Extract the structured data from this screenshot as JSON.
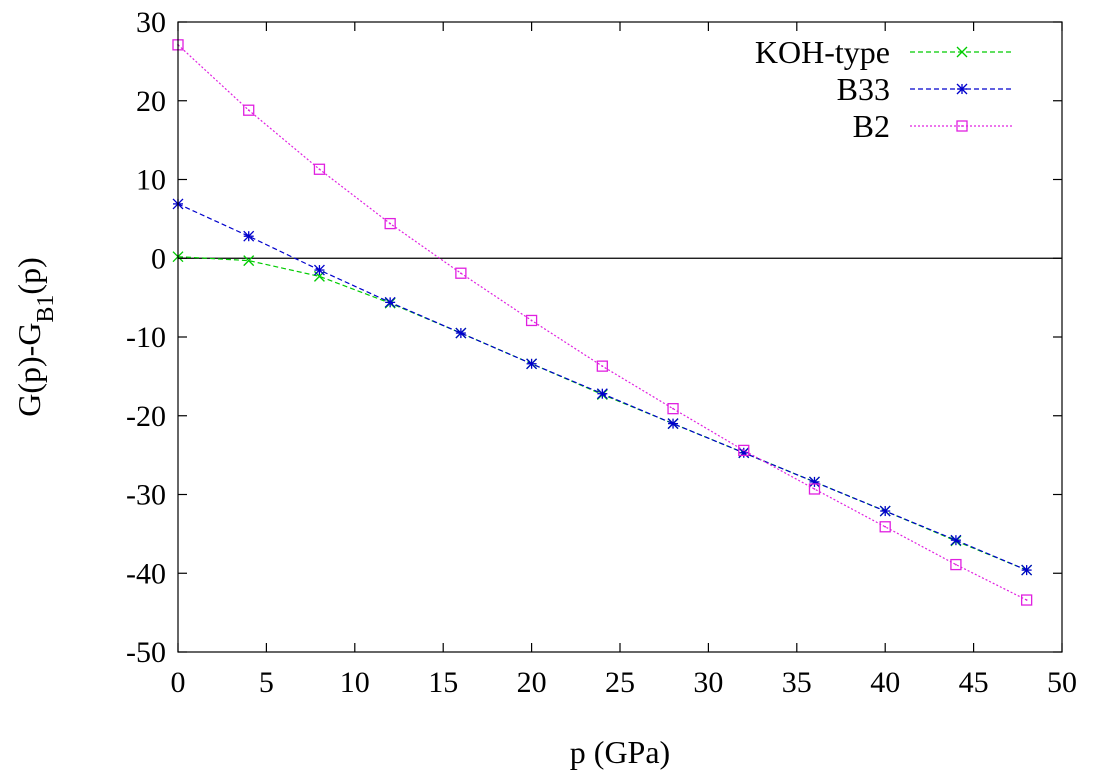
{
  "chart_data": {
    "type": "line",
    "title": "",
    "xlabel": "p (GPa)",
    "ylabel": {
      "main": "G(p)-G",
      "subscript": "B1",
      "suffix": "(p)"
    },
    "xlim": [
      0,
      50
    ],
    "ylim": [
      -50,
      30
    ],
    "xticks": [
      0,
      5,
      10,
      15,
      20,
      25,
      30,
      35,
      40,
      45,
      50
    ],
    "yticks": [
      -50,
      -40,
      -30,
      -20,
      -10,
      0,
      10,
      20,
      30
    ],
    "grid": false,
    "legend_position": "top-right",
    "zero_line": true,
    "series": [
      {
        "name": "KOH-type",
        "color": "#00cc00",
        "marker": "x",
        "dash": "dashed",
        "x": [
          0,
          4,
          8,
          12,
          16,
          20,
          24,
          28,
          32,
          36,
          40,
          44,
          48
        ],
        "y": [
          0.2,
          -0.3,
          -2.3,
          -5.7,
          -9.5,
          -13.4,
          -17.3,
          -21.0,
          -24.7,
          -28.4,
          -32.1,
          -35.9,
          -39.6
        ]
      },
      {
        "name": "B33",
        "color": "#0000cc",
        "marker": "*",
        "dash": "dashed",
        "x": [
          0,
          4,
          8,
          12,
          16,
          20,
          24,
          28,
          32,
          36,
          40,
          44,
          48
        ],
        "y": [
          6.9,
          2.8,
          -1.5,
          -5.6,
          -9.5,
          -13.4,
          -17.2,
          -21.0,
          -24.7,
          -28.4,
          -32.1,
          -35.8,
          -39.6
        ]
      },
      {
        "name": "B2",
        "color": "#e020e0",
        "marker": "square",
        "dash": "dotted",
        "x": [
          0,
          4,
          8,
          12,
          16,
          20,
          24,
          28,
          32,
          36,
          40,
          44,
          48
        ],
        "y": [
          27.1,
          18.8,
          11.3,
          4.4,
          -1.9,
          -7.9,
          -13.7,
          -19.1,
          -24.4,
          -29.3,
          -34.1,
          -38.9,
          -43.4
        ]
      }
    ]
  }
}
